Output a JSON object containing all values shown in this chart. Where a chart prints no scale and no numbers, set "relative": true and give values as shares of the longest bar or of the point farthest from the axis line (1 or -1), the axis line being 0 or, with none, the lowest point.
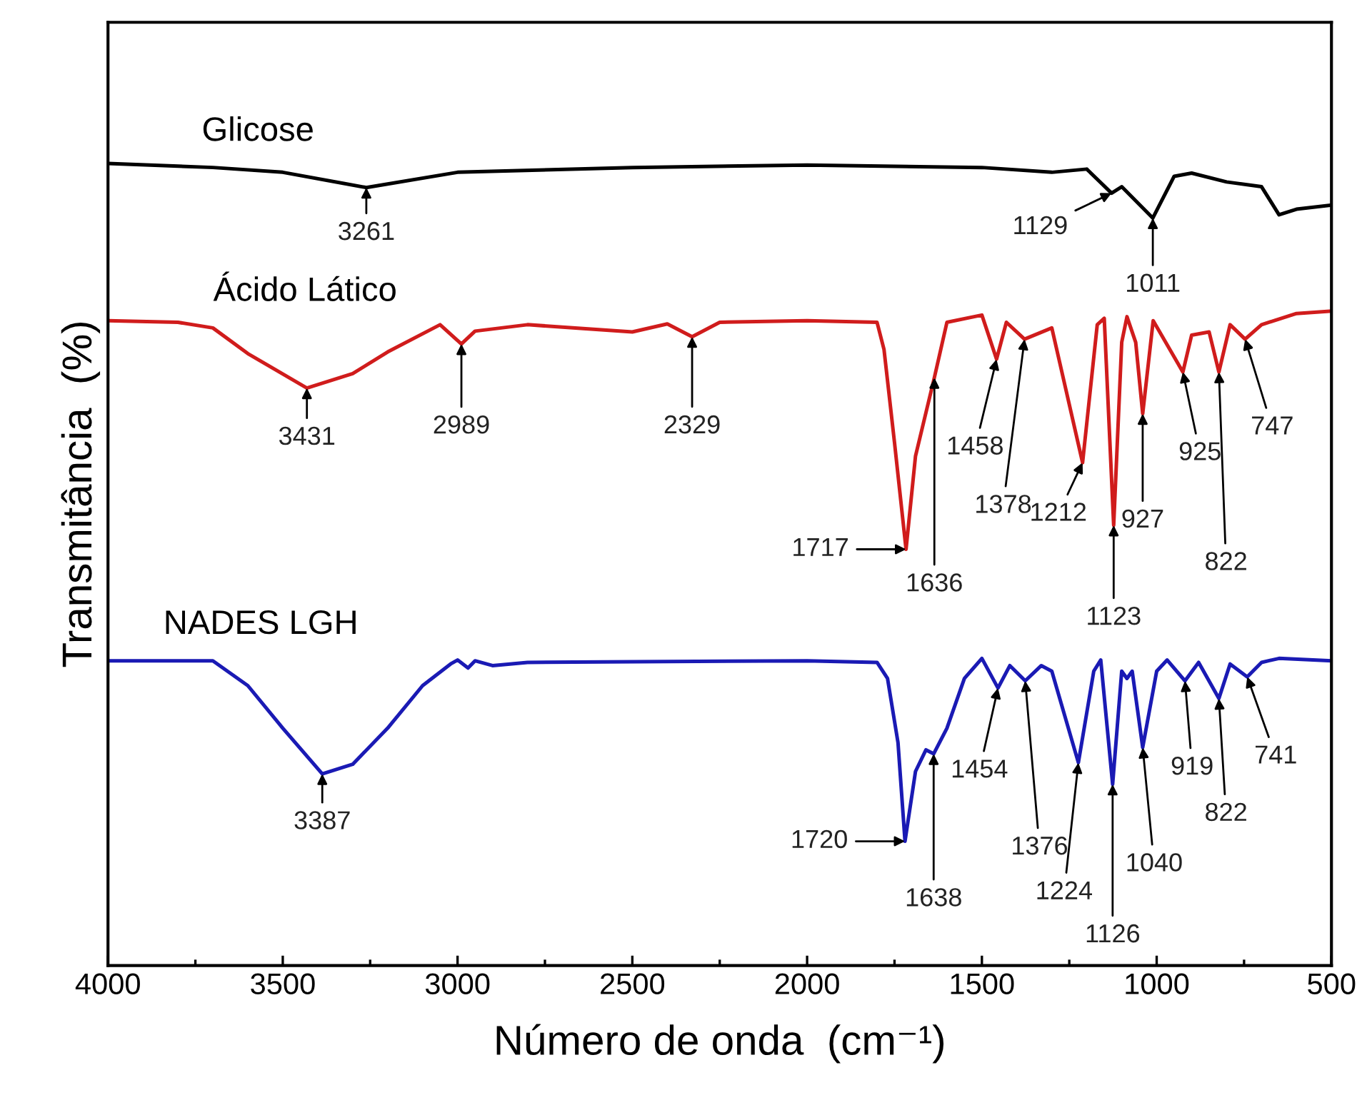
{
  "chart_data": {
    "type": "line",
    "relative": true,
    "xlabel": "Número de onda  (cm⁻¹)",
    "ylabel": "Transmitância  (%)",
    "xlim": [
      4000,
      500
    ],
    "xticks": [
      4000,
      3500,
      3000,
      2500,
      2000,
      1500,
      1000,
      500
    ],
    "tick_labels": "x",
    "grid": false,
    "legend": false,
    "marker": "none",
    "line_style": "solid",
    "series": [
      {
        "name": "Glicose",
        "color": "#000000",
        "x": [
          4000,
          3700,
          3500,
          3261,
          3000,
          2500,
          2000,
          1500,
          1300,
          1200,
          1129,
          1100,
          1011,
          950,
          900,
          800,
          700,
          650,
          600,
          500
        ],
        "values": [
          1.0,
          0.995,
          0.989,
          0.97,
          0.989,
          0.995,
          0.998,
          0.995,
          0.989,
          0.993,
          0.963,
          0.971,
          0.932,
          0.984,
          0.988,
          0.977,
          0.971,
          0.936,
          0.943,
          0.948
        ]
      },
      {
        "name": "Ácido Lático",
        "color": "#d01c1c",
        "x": [
          4000,
          3800,
          3700,
          3600,
          3431,
          3300,
          3200,
          3050,
          2989,
          2950,
          2800,
          2500,
          2400,
          2329,
          2250,
          2000,
          1800,
          1780,
          1750,
          1717,
          1690,
          1636,
          1600,
          1500,
          1458,
          1430,
          1378,
          1300,
          1212,
          1170,
          1150,
          1123,
          1100,
          1085,
          1060,
          1040,
          1010,
          925,
          900,
          850,
          822,
          790,
          747,
          700,
          600,
          500
        ],
        "values": [
          0.804,
          0.802,
          0.795,
          0.763,
          0.72,
          0.738,
          0.765,
          0.799,
          0.775,
          0.791,
          0.799,
          0.79,
          0.8,
          0.784,
          0.802,
          0.804,
          0.802,
          0.768,
          0.652,
          0.519,
          0.635,
          0.733,
          0.802,
          0.811,
          0.756,
          0.802,
          0.781,
          0.795,
          0.627,
          0.799,
          0.807,
          0.549,
          0.777,
          0.809,
          0.777,
          0.688,
          0.804,
          0.74,
          0.786,
          0.79,
          0.74,
          0.799,
          0.781,
          0.799,
          0.813,
          0.816
        ]
      },
      {
        "name": "NADES LGH",
        "color": "#1a1ab4",
        "x": [
          4000,
          3700,
          3600,
          3500,
          3387,
          3300,
          3200,
          3100,
          3020,
          3000,
          2970,
          2950,
          2900,
          2800,
          2000,
          1800,
          1770,
          1740,
          1720,
          1690,
          1660,
          1638,
          1600,
          1550,
          1500,
          1454,
          1420,
          1376,
          1330,
          1300,
          1224,
          1180,
          1160,
          1126,
          1100,
          1085,
          1070,
          1040,
          1000,
          970,
          919,
          880,
          822,
          790,
          741,
          700,
          650,
          500
        ],
        "values": [
          0.38,
          0.38,
          0.349,
          0.296,
          0.239,
          0.251,
          0.296,
          0.349,
          0.376,
          0.381,
          0.371,
          0.38,
          0.374,
          0.378,
          0.38,
          0.378,
          0.358,
          0.278,
          0.155,
          0.242,
          0.269,
          0.264,
          0.296,
          0.358,
          0.383,
          0.346,
          0.374,
          0.355,
          0.374,
          0.367,
          0.253,
          0.367,
          0.381,
          0.226,
          0.367,
          0.358,
          0.367,
          0.272,
          0.367,
          0.381,
          0.355,
          0.378,
          0.333,
          0.376,
          0.36,
          0.378,
          0.383,
          0.38
        ]
      }
    ],
    "annotations": [
      {
        "text": "3261",
        "x": 3261,
        "y": 0.97
      },
      {
        "text": "1129",
        "x": 1129,
        "y": 0.963
      },
      {
        "text": "1011",
        "x": 1011,
        "y": 0.932
      },
      {
        "text": "3431",
        "x": 3431,
        "y": 0.72
      },
      {
        "text": "2989",
        "x": 2989,
        "y": 0.775
      },
      {
        "text": "2329",
        "x": 2329,
        "y": 0.784
      },
      {
        "text": "1717",
        "x": 1717,
        "y": 0.519
      },
      {
        "text": "1636",
        "x": 1636,
        "y": 0.733
      },
      {
        "text": "1458",
        "x": 1458,
        "y": 0.756
      },
      {
        "text": "1378",
        "x": 1378,
        "y": 0.781
      },
      {
        "text": "1212",
        "x": 1212,
        "y": 0.627
      },
      {
        "text": "1123",
        "x": 1123,
        "y": 0.549
      },
      {
        "text": "927",
        "x": 1040,
        "y": 0.688
      },
      {
        "text": "925",
        "x": 925,
        "y": 0.74
      },
      {
        "text": "822",
        "x": 822,
        "y": 0.74
      },
      {
        "text": "747",
        "x": 747,
        "y": 0.781
      },
      {
        "text": "3387",
        "x": 3387,
        "y": 0.239
      },
      {
        "text": "1720",
        "x": 1720,
        "y": 0.155
      },
      {
        "text": "1638",
        "x": 1638,
        "y": 0.264
      },
      {
        "text": "1454",
        "x": 1454,
        "y": 0.346
      },
      {
        "text": "1376",
        "x": 1376,
        "y": 0.355
      },
      {
        "text": "1224",
        "x": 1224,
        "y": 0.253
      },
      {
        "text": "1126",
        "x": 1126,
        "y": 0.226
      },
      {
        "text": "1040",
        "x": 1040,
        "y": 0.272
      },
      {
        "text": "919",
        "x": 919,
        "y": 0.355
      },
      {
        "text": "822",
        "x": 822,
        "y": 0.333
      },
      {
        "text": "741",
        "x": 741,
        "y": 0.36
      }
    ]
  }
}
